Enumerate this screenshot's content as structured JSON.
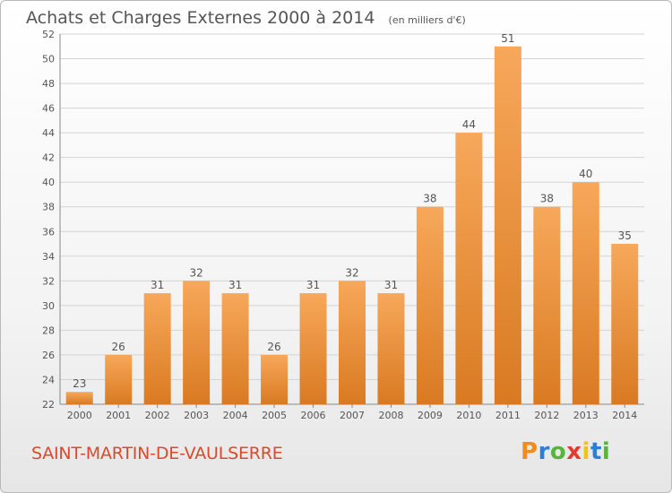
{
  "header": {
    "title": "Achats et Charges Externes 2000 à 2014",
    "subtitle": "(en milliers d'€)"
  },
  "footer": {
    "commune": "SAINT-MARTIN-DE-VAULSERRE",
    "logo_text": "Proxiti",
    "logo_colors": [
      "#f08c1e",
      "#2d7fd3",
      "#55b63c",
      "#e53b2e",
      "#f2c21b",
      "#2d7fd3",
      "#55b63c"
    ]
  },
  "colors": {
    "bar_top": "#f7a85a",
    "bar_bottom": "#d97a22",
    "grid": "#d4d4d4",
    "axis_text": "#555555",
    "brand": "#d94a2c"
  },
  "chart_data": {
    "type": "bar",
    "categories": [
      "2000",
      "2001",
      "2002",
      "2003",
      "2004",
      "2005",
      "2006",
      "2007",
      "2008",
      "2009",
      "2010",
      "2011",
      "2012",
      "2013",
      "2014"
    ],
    "values": [
      23,
      26,
      31,
      32,
      31,
      26,
      31,
      32,
      31,
      38,
      44,
      51,
      38,
      40,
      35
    ],
    "data_labels": [
      "23",
      "26",
      "31",
      "32",
      "31",
      "26",
      "31",
      "32",
      "31",
      "38",
      "44",
      "51",
      "38",
      "40",
      "35"
    ],
    "ylim": [
      22,
      52
    ],
    "yticks": [
      "22",
      "24",
      "26",
      "28",
      "30",
      "32",
      "34",
      "36",
      "38",
      "40",
      "42",
      "44",
      "46",
      "48",
      "50",
      "52"
    ],
    "grid": true,
    "legend": "none",
    "xlabel": "",
    "ylabel": ""
  }
}
